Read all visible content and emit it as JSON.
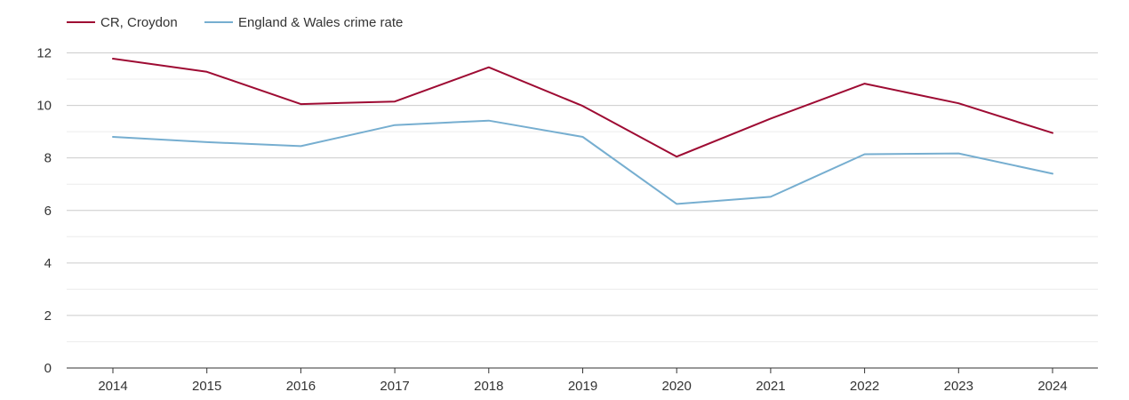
{
  "chart_data": {
    "type": "line",
    "title": "",
    "xlabel": "",
    "ylabel": "",
    "categories": [
      "2014",
      "2015",
      "2016",
      "2017",
      "2018",
      "2019",
      "2020",
      "2021",
      "2022",
      "2023",
      "2024"
    ],
    "y_ticks": [
      "0",
      "2",
      "4",
      "6",
      "8",
      "10",
      "12"
    ],
    "ylim": [
      0,
      12
    ],
    "grid": true,
    "legend_position": "top-left",
    "series": [
      {
        "name": "CR, Croydon",
        "color": "#9e0b33",
        "values": [
          11.78,
          11.28,
          10.05,
          10.15,
          11.45,
          9.98,
          8.05,
          9.5,
          10.83,
          10.08,
          8.95
        ]
      },
      {
        "name": "England & Wales crime rate",
        "color": "#76aed0",
        "values": [
          8.8,
          8.6,
          8.45,
          9.25,
          9.42,
          8.8,
          6.25,
          6.52,
          8.14,
          8.17,
          7.4
        ]
      }
    ]
  }
}
